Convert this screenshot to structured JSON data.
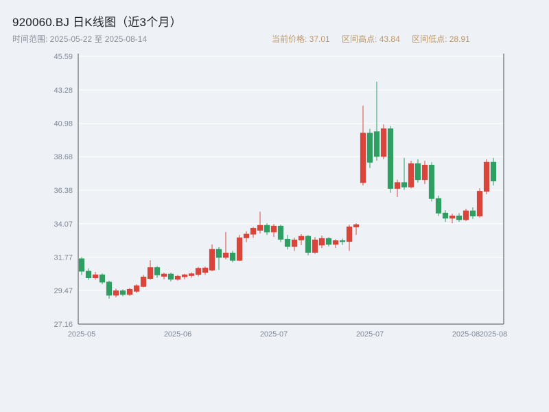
{
  "header": {
    "title": "920060.BJ 日K线图（近3个月）",
    "time_range_label": "时间范围: 2025-05-22 至 2025-08-14",
    "stats": {
      "current_price": "当前价格: 37.01",
      "range_high": "区间高点: 43.84",
      "range_low": "区间低点: 28.91"
    }
  },
  "colors": {
    "up": "#d9453a",
    "down": "#2e9e62",
    "background": "#eef2f7",
    "grid": "#ffffff",
    "axis": "#4a4d52",
    "axis_label": "#7d8795",
    "title_text": "#20242c",
    "subtitle_text": "#8a919c",
    "stats_text": "#bd9768"
  },
  "chart_data": {
    "type": "candlestick",
    "title": "920060.BJ 日K线图（近3个月）",
    "series_name": "920060.BJ 日K",
    "date_range": [
      "2025-05-22",
      "2025-08-14"
    ],
    "current_price": 37.01,
    "range_high": 43.84,
    "range_low": 28.91,
    "ylim": [
      27.16,
      45.59
    ],
    "y_ticks": [
      45.59,
      43.28,
      40.98,
      38.68,
      36.38,
      34.07,
      31.77,
      29.47,
      27.16
    ],
    "x_ticks": [
      {
        "index": 0,
        "label": "2025-05"
      },
      {
        "index": 14,
        "label": "2025-06"
      },
      {
        "index": 28,
        "label": "2025-07"
      },
      {
        "index": 42,
        "label": "2025-07"
      },
      {
        "index": 56,
        "label": "2025-08"
      },
      {
        "index": 60,
        "label": "2025-08"
      }
    ],
    "grid": true,
    "legend": "none",
    "ohlc": [
      [
        31.65,
        31.78,
        30.55,
        30.8
      ],
      [
        30.8,
        31.0,
        30.2,
        30.35
      ],
      [
        30.35,
        30.75,
        30.22,
        30.55
      ],
      [
        30.55,
        30.65,
        29.9,
        30.05
      ],
      [
        30.05,
        30.15,
        28.91,
        29.15
      ],
      [
        29.15,
        29.6,
        29.0,
        29.45
      ],
      [
        29.45,
        29.55,
        29.08,
        29.2
      ],
      [
        29.2,
        29.65,
        29.1,
        29.55
      ],
      [
        29.42,
        29.9,
        29.3,
        29.8
      ],
      [
        29.75,
        30.55,
        29.7,
        30.4
      ],
      [
        30.3,
        31.55,
        30.2,
        31.05
      ],
      [
        31.05,
        31.15,
        30.35,
        30.55
      ],
      [
        30.45,
        30.7,
        30.25,
        30.6
      ],
      [
        30.6,
        30.7,
        30.1,
        30.25
      ],
      [
        30.25,
        30.55,
        30.15,
        30.45
      ],
      [
        30.42,
        30.62,
        30.25,
        30.55
      ],
      [
        30.5,
        30.72,
        30.35,
        30.62
      ],
      [
        30.58,
        31.1,
        30.45,
        31.0
      ],
      [
        30.72,
        31.12,
        30.55,
        31.02
      ],
      [
        30.88,
        32.65,
        30.8,
        32.3
      ],
      [
        32.3,
        32.45,
        30.9,
        31.75
      ],
      [
        31.75,
        33.5,
        31.62,
        32.05
      ],
      [
        32.05,
        32.2,
        31.4,
        31.55
      ],
      [
        31.55,
        33.3,
        31.5,
        33.1
      ],
      [
        33.1,
        33.55,
        32.8,
        33.35
      ],
      [
        33.35,
        33.85,
        33.1,
        33.75
      ],
      [
        33.62,
        34.9,
        33.4,
        33.95
      ],
      [
        33.95,
        34.1,
        33.3,
        33.5
      ],
      [
        33.5,
        34.05,
        33.15,
        33.9
      ],
      [
        33.9,
        34.0,
        32.8,
        33.0
      ],
      [
        33.0,
        33.3,
        32.3,
        32.5
      ],
      [
        32.5,
        33.1,
        32.2,
        32.95
      ],
      [
        32.95,
        33.35,
        32.6,
        33.2
      ],
      [
        33.2,
        33.3,
        31.9,
        32.1
      ],
      [
        32.1,
        33.15,
        32.0,
        32.95
      ],
      [
        32.6,
        33.25,
        32.4,
        33.05
      ],
      [
        33.05,
        33.15,
        32.5,
        32.65
      ],
      [
        32.65,
        33.0,
        32.4,
        32.9
      ],
      [
        32.9,
        33.05,
        32.6,
        32.85
      ],
      [
        32.85,
        34.0,
        32.2,
        33.85
      ],
      [
        33.85,
        34.1,
        33.3,
        34.0
      ],
      [
        36.9,
        42.2,
        36.7,
        40.3
      ],
      [
        40.3,
        40.6,
        37.9,
        38.3
      ],
      [
        40.4,
        43.84,
        38.4,
        38.7
      ],
      [
        38.7,
        40.9,
        38.5,
        40.6
      ],
      [
        40.6,
        40.8,
        36.2,
        36.5
      ],
      [
        36.5,
        37.1,
        35.9,
        36.9
      ],
      [
        36.9,
        38.6,
        36.4,
        36.6
      ],
      [
        36.6,
        38.4,
        36.5,
        38.2
      ],
      [
        38.2,
        38.5,
        36.9,
        37.1
      ],
      [
        37.1,
        38.4,
        36.8,
        38.1
      ],
      [
        38.1,
        38.3,
        35.6,
        35.8
      ],
      [
        35.8,
        36.0,
        34.6,
        34.8
      ],
      [
        34.8,
        35.0,
        34.2,
        34.45
      ],
      [
        34.45,
        34.75,
        34.1,
        34.6
      ],
      [
        34.6,
        34.8,
        34.2,
        34.35
      ],
      [
        34.35,
        35.1,
        34.25,
        34.95
      ],
      [
        34.95,
        35.2,
        34.4,
        34.6
      ],
      [
        34.6,
        36.5,
        34.5,
        36.3
      ],
      [
        36.3,
        38.5,
        36.1,
        38.3
      ],
      [
        38.3,
        38.6,
        36.7,
        37.01
      ]
    ]
  }
}
